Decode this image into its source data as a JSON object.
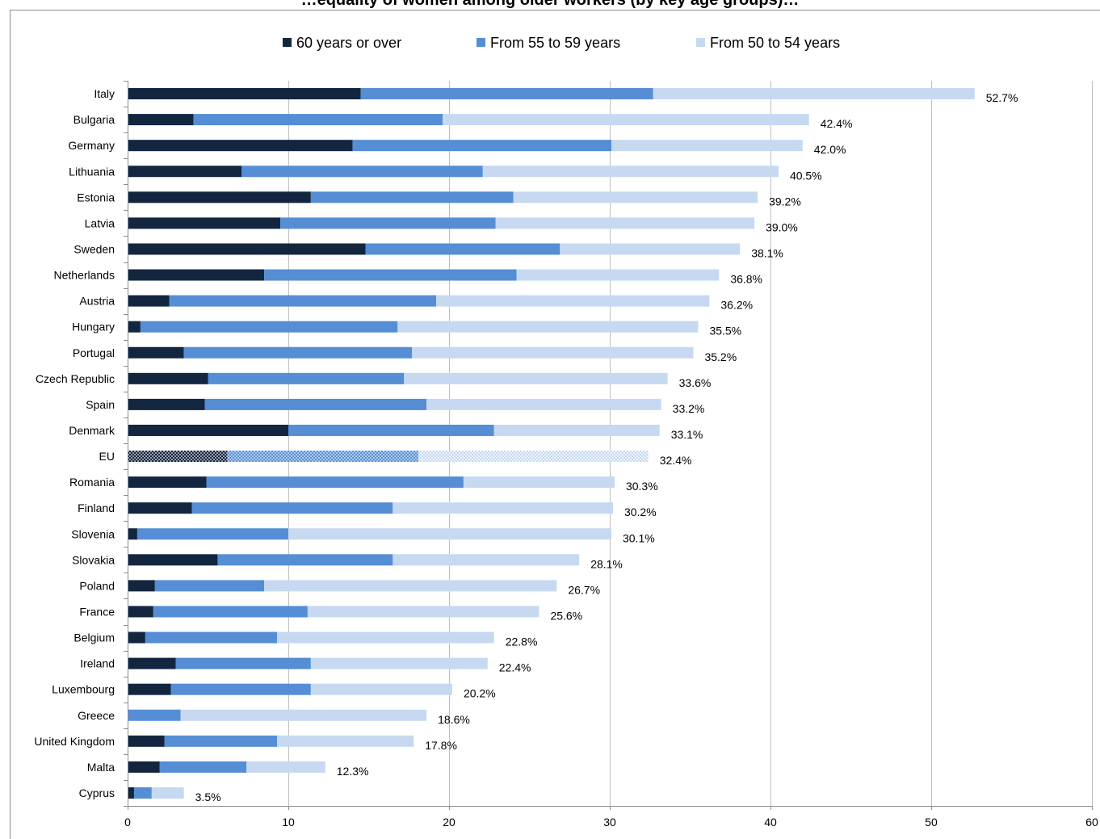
{
  "chart_data": {
    "type": "bar",
    "orientation": "horizontal",
    "stacked": true,
    "title": "…equality of women among older workers (by key age groups)…",
    "categories": [
      "Italy",
      "Bulgaria",
      "Germany",
      "Lithuania",
      "Estonia",
      "Latvia",
      "Sweden",
      "Netherlands",
      "Austria",
      "Hungary",
      "Portugal",
      "Czech Republic",
      "Spain",
      "Denmark",
      "EU",
      "Romania",
      "Finland",
      "Slovenia",
      "Slovakia",
      "Poland",
      "France",
      "Belgium",
      "Ireland",
      "Luxembourg",
      "Greece",
      "United Kingdom",
      "Malta",
      "Cyprus"
    ],
    "series": [
      {
        "name": "60 years or over",
        "color": "#132640",
        "values": [
          14.5,
          4.1,
          14.0,
          7.1,
          11.4,
          9.5,
          14.8,
          8.5,
          2.6,
          0.8,
          3.5,
          5.0,
          4.8,
          10.0,
          6.2,
          4.9,
          4.0,
          0.6,
          5.6,
          1.7,
          1.6,
          1.1,
          3.0,
          2.7,
          0.0,
          2.3,
          2.0,
          0.4
        ]
      },
      {
        "name": "From 55 to 59 years",
        "color": "#558ED5",
        "values": [
          18.2,
          15.5,
          16.1,
          15.0,
          12.6,
          13.4,
          12.1,
          15.7,
          16.6,
          16.0,
          14.2,
          12.2,
          13.8,
          12.8,
          11.9,
          16.0,
          12.5,
          9.4,
          10.9,
          6.8,
          9.6,
          8.2,
          8.4,
          8.7,
          3.3,
          7.0,
          5.4,
          1.1
        ]
      },
      {
        "name": "From 50 to 54 years",
        "color": "#C6D9F1",
        "values": [
          20.0,
          22.8,
          11.9,
          18.4,
          15.2,
          16.1,
          11.2,
          12.6,
          17.0,
          18.7,
          17.5,
          16.4,
          14.6,
          10.3,
          14.3,
          9.4,
          13.7,
          20.1,
          11.6,
          18.2,
          14.4,
          13.5,
          11.0,
          8.8,
          15.3,
          8.5,
          4.9,
          2.0
        ]
      }
    ],
    "totals_labels": [
      "52.7%",
      "42.4%",
      "42.0%",
      "40.5%",
      "39.2%",
      "39.0%",
      "38.1%",
      "36.8%",
      "36.2%",
      "35.5%",
      "35.2%",
      "33.6%",
      "33.2%",
      "33.1%",
      "32.4%",
      "30.3%",
      "30.2%",
      "30.1%",
      "28.1%",
      "26.7%",
      "25.6%",
      "22.8%",
      "22.4%",
      "20.2%",
      "18.6%",
      "17.8%",
      "12.3%",
      "3.5%"
    ],
    "totals": [
      52.7,
      42.4,
      42.0,
      40.5,
      39.2,
      39.0,
      38.1,
      36.8,
      36.2,
      35.5,
      35.2,
      33.6,
      33.2,
      33.1,
      32.4,
      30.3,
      30.2,
      30.1,
      28.1,
      26.7,
      25.6,
      22.8,
      22.4,
      20.2,
      18.6,
      17.8,
      12.3,
      3.5
    ],
    "highlight_category": "EU",
    "xlim": [
      0,
      60
    ],
    "x_ticks": [
      0,
      10,
      20,
      30,
      40,
      50,
      60
    ],
    "x_tick_labels": [
      "0",
      "10",
      "20",
      "30",
      "40",
      "50",
      "60"
    ],
    "grid": "vertical",
    "legend_position": "top",
    "xlabel": "",
    "ylabel": ""
  }
}
